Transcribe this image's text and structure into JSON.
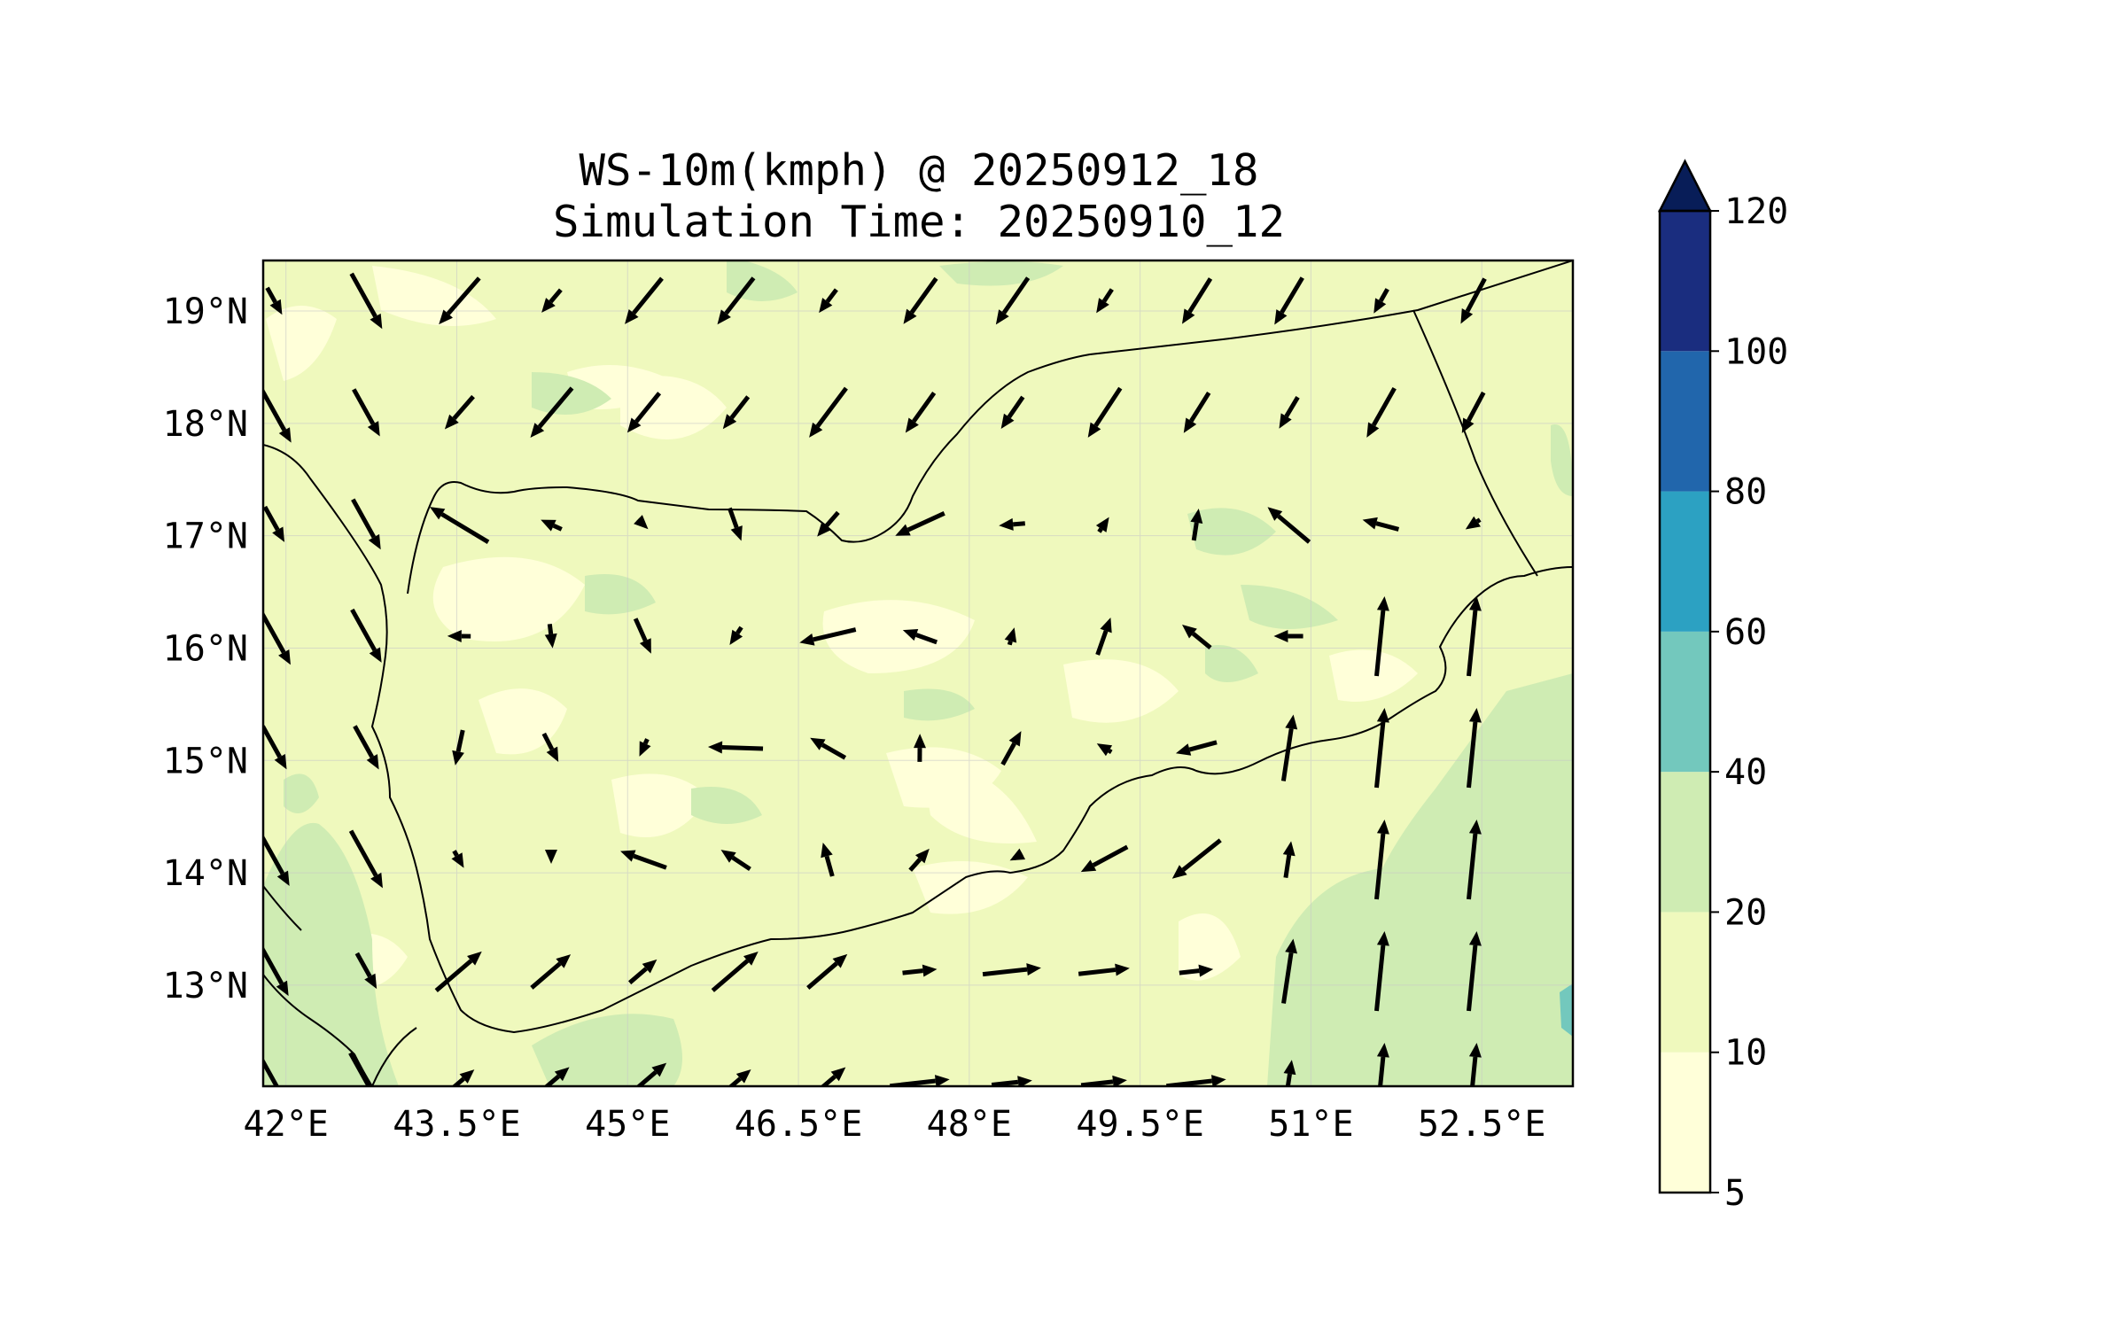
{
  "title": {
    "line1": "WS-10m(kmph) @ 20250912_18",
    "line2": "Simulation Time: 20250910_12"
  },
  "map": {
    "extent": {
      "lon_min": 41.8,
      "lon_max": 53.3,
      "lat_min": 12.1,
      "lat_max": 19.45
    },
    "lon_ticks": [
      {
        "value": 42.0,
        "label": "42°E"
      },
      {
        "value": 43.5,
        "label": "43.5°E"
      },
      {
        "value": 45.0,
        "label": "45°E"
      },
      {
        "value": 46.5,
        "label": "46.5°E"
      },
      {
        "value": 48.0,
        "label": "48°E"
      },
      {
        "value": 49.5,
        "label": "49.5°E"
      },
      {
        "value": 51.0,
        "label": "51°E"
      },
      {
        "value": 52.5,
        "label": "52.5°E"
      }
    ],
    "lat_ticks": [
      {
        "value": 19,
        "label": "19°N"
      },
      {
        "value": 18,
        "label": "18°N"
      },
      {
        "value": 17,
        "label": "17°N"
      },
      {
        "value": 16,
        "label": "16°N"
      },
      {
        "value": 15,
        "label": "15°N"
      },
      {
        "value": 14,
        "label": "14°N"
      },
      {
        "value": 13,
        "label": "13°N"
      }
    ],
    "colors": {
      "land_line": "#000000",
      "grid": "#c8c8c8",
      "arrow": "#000000"
    }
  },
  "colorbar": {
    "levels": [
      {
        "value": 5,
        "label": "5",
        "color": "#ffffd9"
      },
      {
        "value": 10,
        "label": "10",
        "color": "#eff9bd"
      },
      {
        "value": 20,
        "label": "20",
        "color": "#cfecb3"
      },
      {
        "value": 40,
        "label": "40",
        "color": "#73c8bd"
      },
      {
        "value": 60,
        "label": "60",
        "color": "#2ca1c2"
      },
      {
        "value": 80,
        "label": "80",
        "color": "#2166ac"
      },
      {
        "value": 100,
        "label": "100",
        "color": "#1a2d7f"
      },
      {
        "value": 120,
        "label": "120",
        "color": "#081d58"
      }
    ],
    "extend": "max"
  }
}
